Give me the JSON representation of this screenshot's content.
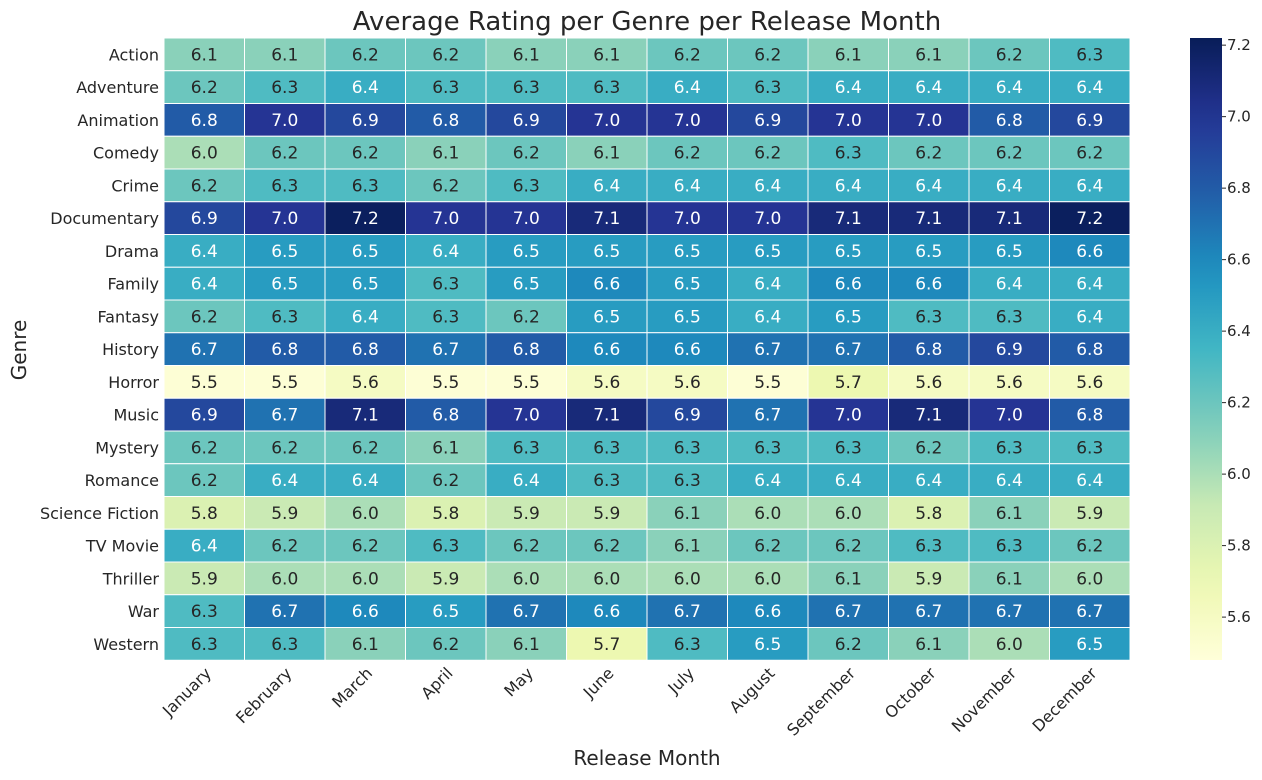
{
  "chart_data": {
    "type": "heatmap",
    "title": "Average Rating per Genre per Release Month",
    "xlabel": "Release Month",
    "ylabel": "Genre",
    "columns": [
      "January",
      "February",
      "March",
      "April",
      "May",
      "June",
      "July",
      "August",
      "September",
      "October",
      "November",
      "December"
    ],
    "rows": [
      "Action",
      "Adventure",
      "Animation",
      "Comedy",
      "Crime",
      "Documentary",
      "Drama",
      "Family",
      "Fantasy",
      "History",
      "Horror",
      "Music",
      "Mystery",
      "Romance",
      "Science Fiction",
      "TV Movie",
      "Thriller",
      "War",
      "Western"
    ],
    "values": [
      [
        6.1,
        6.1,
        6.2,
        6.2,
        6.1,
        6.1,
        6.2,
        6.2,
        6.1,
        6.1,
        6.2,
        6.3
      ],
      [
        6.2,
        6.3,
        6.4,
        6.3,
        6.3,
        6.3,
        6.4,
        6.3,
        6.4,
        6.4,
        6.4,
        6.4
      ],
      [
        6.8,
        7.0,
        6.9,
        6.8,
        6.9,
        7.0,
        7.0,
        6.9,
        7.0,
        7.0,
        6.8,
        6.9
      ],
      [
        6.0,
        6.2,
        6.2,
        6.1,
        6.2,
        6.1,
        6.2,
        6.2,
        6.3,
        6.2,
        6.2,
        6.2
      ],
      [
        6.2,
        6.3,
        6.3,
        6.2,
        6.3,
        6.4,
        6.4,
        6.4,
        6.4,
        6.4,
        6.4,
        6.4
      ],
      [
        6.9,
        7.0,
        7.2,
        7.0,
        7.0,
        7.1,
        7.0,
        7.0,
        7.1,
        7.1,
        7.1,
        7.2
      ],
      [
        6.4,
        6.5,
        6.5,
        6.4,
        6.5,
        6.5,
        6.5,
        6.5,
        6.5,
        6.5,
        6.5,
        6.6
      ],
      [
        6.4,
        6.5,
        6.5,
        6.3,
        6.5,
        6.6,
        6.5,
        6.4,
        6.6,
        6.6,
        6.4,
        6.4
      ],
      [
        6.2,
        6.3,
        6.4,
        6.3,
        6.2,
        6.5,
        6.5,
        6.4,
        6.5,
        6.3,
        6.3,
        6.4
      ],
      [
        6.7,
        6.8,
        6.8,
        6.7,
        6.8,
        6.6,
        6.6,
        6.7,
        6.7,
        6.8,
        6.9,
        6.8
      ],
      [
        5.5,
        5.5,
        5.6,
        5.5,
        5.5,
        5.6,
        5.6,
        5.5,
        5.7,
        5.6,
        5.6,
        5.6
      ],
      [
        6.9,
        6.7,
        7.1,
        6.8,
        7.0,
        7.1,
        6.9,
        6.7,
        7.0,
        7.1,
        7.0,
        6.8
      ],
      [
        6.2,
        6.2,
        6.2,
        6.1,
        6.3,
        6.3,
        6.3,
        6.3,
        6.3,
        6.2,
        6.3,
        6.3
      ],
      [
        6.2,
        6.4,
        6.4,
        6.2,
        6.4,
        6.3,
        6.3,
        6.4,
        6.4,
        6.4,
        6.4,
        6.4
      ],
      [
        5.8,
        5.9,
        6.0,
        5.8,
        5.9,
        5.9,
        6.1,
        6.0,
        6.0,
        5.8,
        6.1,
        5.9
      ],
      [
        6.4,
        6.2,
        6.2,
        6.3,
        6.2,
        6.2,
        6.1,
        6.2,
        6.2,
        6.3,
        6.3,
        6.2
      ],
      [
        5.9,
        6.0,
        6.0,
        5.9,
        6.0,
        6.0,
        6.0,
        6.0,
        6.1,
        5.9,
        6.1,
        6.0
      ],
      [
        6.3,
        6.7,
        6.6,
        6.5,
        6.7,
        6.6,
        6.7,
        6.6,
        6.7,
        6.7,
        6.7,
        6.7
      ],
      [
        6.3,
        6.3,
        6.1,
        6.2,
        6.1,
        5.7,
        6.3,
        6.5,
        6.2,
        6.1,
        6.0,
        6.5
      ]
    ],
    "colorscale": "YlGnBu",
    "vmin": 5.48,
    "vmax": 7.22,
    "colorbar_ticks": [
      5.6,
      5.8,
      6.0,
      6.2,
      6.4,
      6.6,
      6.8,
      7.0,
      7.2
    ],
    "annotations": true,
    "cell_separator_color": "#ffffff"
  }
}
